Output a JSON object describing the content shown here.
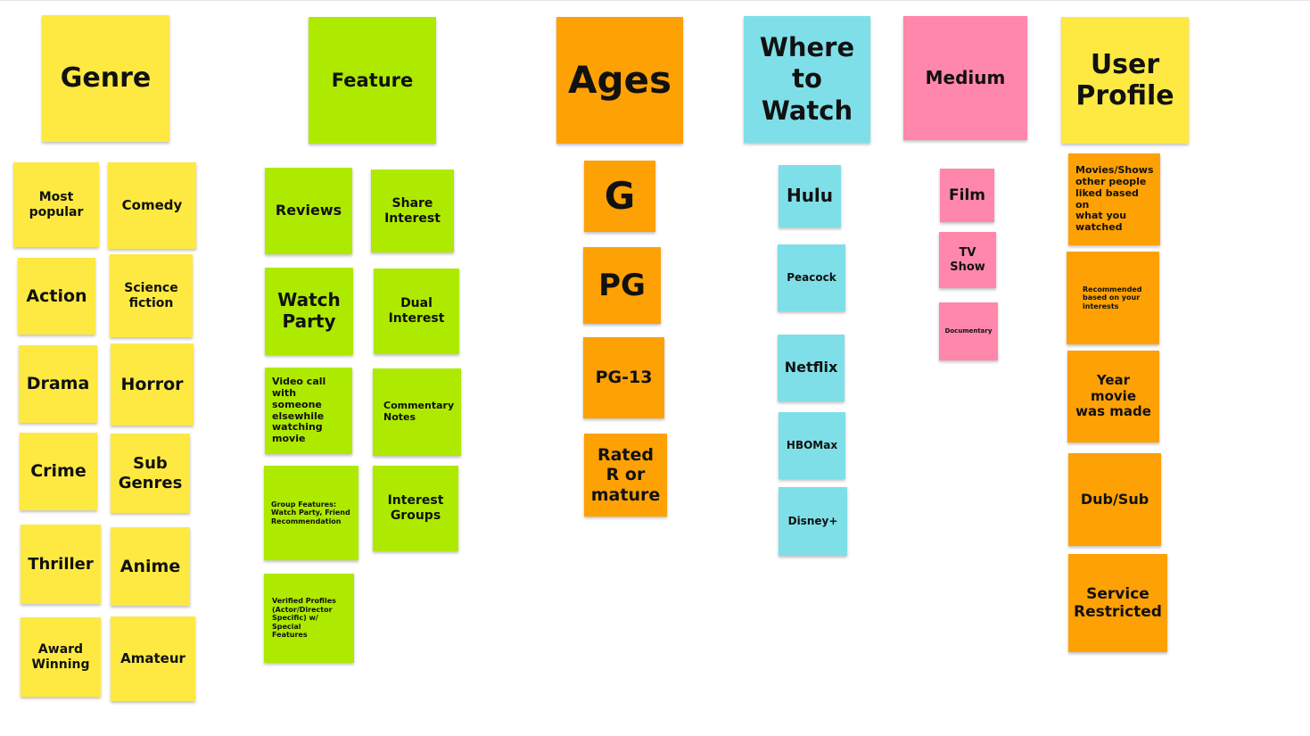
{
  "headers": {
    "genre": "Genre",
    "feature": "Feature",
    "ages": "Ages",
    "where_to_watch": "Where\nto\nWatch",
    "medium": "Medium",
    "user_profile": "User\nProfile"
  },
  "genre": {
    "most_popular": "Most\npopular",
    "comedy": "Comedy",
    "action": "Action",
    "science_fiction": "Science\nfiction",
    "drama": "Drama",
    "horror": "Horror",
    "crime": "Crime",
    "sub_genres": "Sub\nGenres",
    "thriller": "Thriller",
    "anime": "Anime",
    "award_winning": "Award\nWinning",
    "amateur": "Amateur"
  },
  "feature": {
    "reviews": "Reviews",
    "share_interest": "Share\nInterest",
    "watch_party": "Watch\nParty",
    "dual_interest": "Dual\nInterest",
    "video_call": "Video call with\nsomeone\nelsewhile\nwatching\nmovie",
    "commentary_notes": "Commentary\nNotes",
    "group_features": "Group Features:\nWatch Party, Friend\nRecommendation",
    "interest_groups": "Interest\nGroups",
    "verified_profiles": "Verified Profiles\n(Actor/Director\nSpecific) w/ Special\nFeatures"
  },
  "ages": {
    "g": "G",
    "pg": "PG",
    "pg13": "PG-13",
    "rated_r": "Rated\nR or\nmature"
  },
  "where_to_watch": {
    "hulu": "Hulu",
    "peacock": "Peacock",
    "netflix": "Netflix",
    "hbomax": "HBOMax",
    "disney": "Disney+"
  },
  "medium": {
    "film": "Film",
    "tv_show": "TV\nShow",
    "documentary": "Documentary"
  },
  "user_profile": {
    "movies_liked": "Movies/Shows\nother people\nliked based on\nwhat you\nwatched",
    "recommended": "Recommended\nbased on your\ninterests",
    "year_made": "Year\nmovie\nwas made",
    "dub_sub": "Dub/Sub",
    "service_restricted": "Service\nRestricted"
  },
  "colors": {
    "yellow": "#fde941",
    "green": "#aeea00",
    "orange": "#fda104",
    "cyan": "#7fdfe8",
    "pink": "#fe87ab"
  }
}
